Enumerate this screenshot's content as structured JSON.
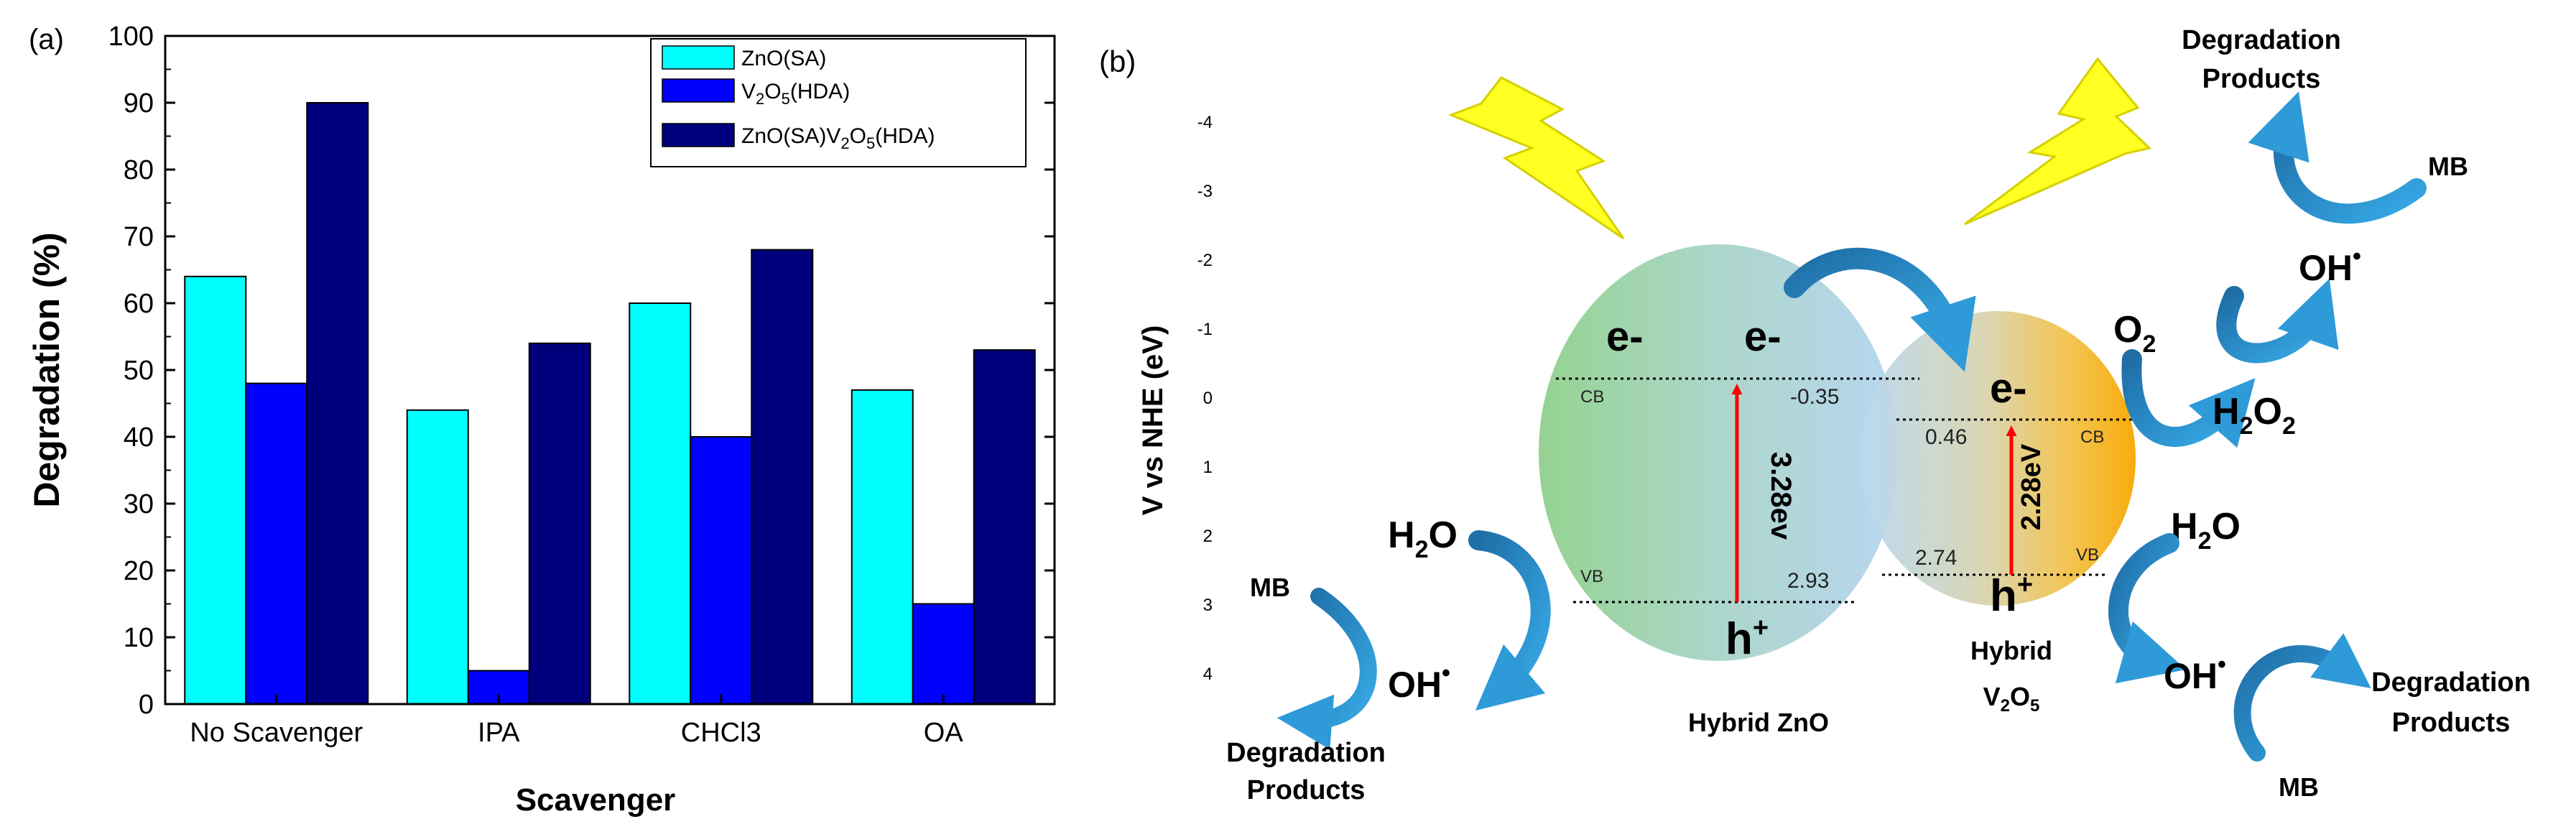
{
  "panel_a": {
    "label": "(a)"
  },
  "panel_b": {
    "label": "(b)"
  },
  "chart_data": {
    "type": "bar",
    "title": "",
    "xlabel": "Scavenger",
    "ylabel": "Degradation (%)",
    "ylim": [
      0,
      100
    ],
    "yticks": [
      0,
      10,
      20,
      30,
      40,
      50,
      60,
      70,
      80,
      90,
      100
    ],
    "grid": false,
    "legend_position": "top-right",
    "categories": [
      "No Scavenger",
      "IPA",
      "CHCl3",
      "OA"
    ],
    "series": [
      {
        "name": "ZnO(SA)",
        "color": "#00ffff",
        "values": [
          64,
          44,
          60,
          47
        ]
      },
      {
        "name": "V2O5(HDA)",
        "color": "#0000ff",
        "values": [
          48,
          5,
          40,
          15
        ]
      },
      {
        "name": "ZnO(SA)V2O5(HDA)",
        "color": "#00007d",
        "values": [
          90,
          54,
          68,
          53
        ]
      }
    ]
  },
  "diagram": {
    "axis_label": "V vs NHE (eV)",
    "axis_ticks": [
      "-4",
      "-3",
      "-2",
      "-1",
      "0",
      "1",
      "2",
      "3",
      "4"
    ],
    "zno": {
      "name": "Hybrid ZnO",
      "electron_left": "e-",
      "electron_right": "e-",
      "hole": "h+",
      "cb_label": "CB",
      "vb_label": "VB",
      "cb_value": "-0.35",
      "vb_value": "2.93",
      "gap": "3.28ev"
    },
    "v2o5": {
      "name_line1": "Hybrid",
      "name_line2": "V2O5",
      "electron": "e-",
      "hole": "h+",
      "cb_label": "CB",
      "vb_label": "VB",
      "cb_value": "0.46",
      "vb_value": "2.74",
      "gap": "2.28eV"
    },
    "left_reaction": {
      "h2o": "H2O",
      "oh": "OH•",
      "mb": "MB",
      "products_line1": "Degradation",
      "products_line2": "Products"
    },
    "right_reaction": {
      "h2o": "H2O",
      "oh": "OH•",
      "mb": "MB",
      "products_line1": "Degradation",
      "products_line2": "Products"
    },
    "top_reaction": {
      "o2": "O2",
      "h2o2": "H2O2",
      "oh": "OH•",
      "mb": "MB",
      "products_line1": "Degradation",
      "products_line2": "Products"
    }
  }
}
